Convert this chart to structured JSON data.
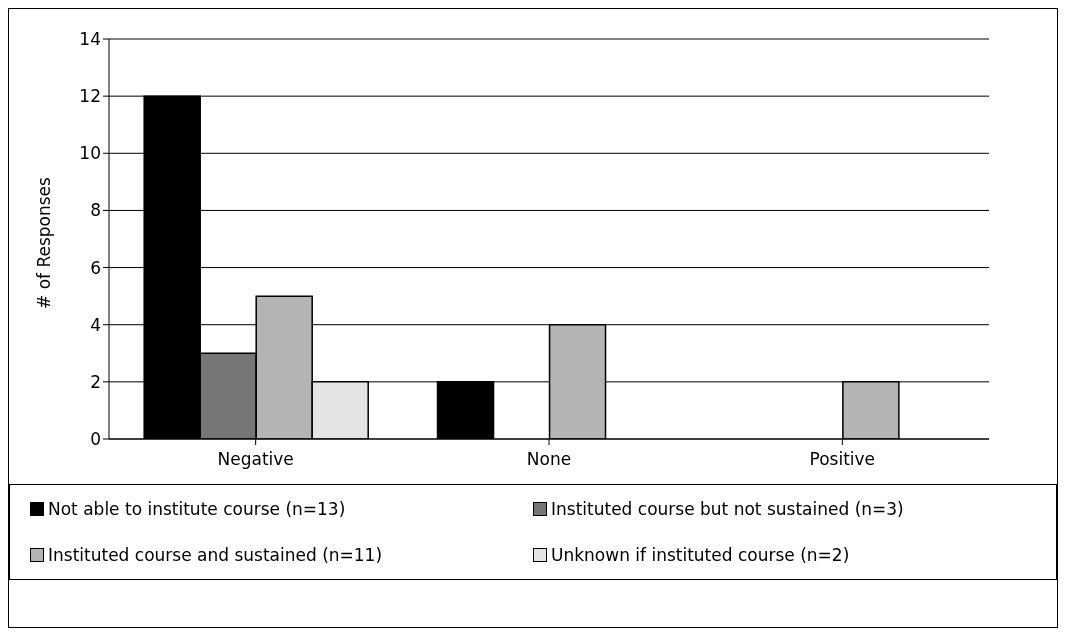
{
  "chart_data": {
    "type": "bar",
    "ylabel": "# of Responses",
    "categories": [
      "Negative",
      "None",
      "Positive"
    ],
    "series": [
      {
        "name": "Not able to institute course (n=13)",
        "color": "#000000",
        "values": [
          12,
          2,
          0
        ]
      },
      {
        "name": "Instituted course but not sustained (n=3)",
        "color": "#767676",
        "values": [
          3,
          0,
          0
        ]
      },
      {
        "name": "Instituted course and sustained (n=11)",
        "color": "#b4b4b4",
        "values": [
          5,
          4,
          2
        ]
      },
      {
        "name": "Unknown if instituted course (n=2)",
        "color": "#e4e4e4",
        "values": [
          2,
          0,
          0
        ]
      }
    ],
    "ylim": [
      0,
      14
    ],
    "yticks": [
      0,
      2,
      4,
      6,
      8,
      10,
      12,
      14
    ],
    "grid": "y",
    "legend": "bottom"
  }
}
